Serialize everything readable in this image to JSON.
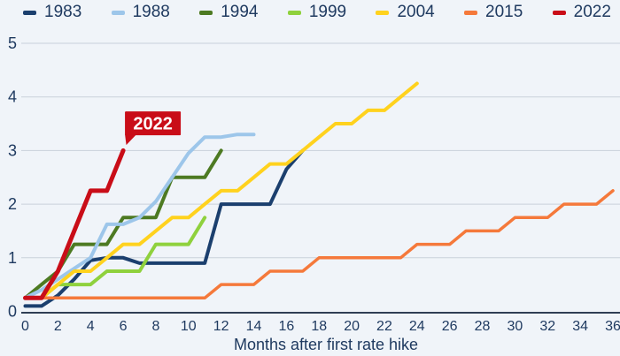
{
  "chart_data": {
    "type": "line",
    "title": "",
    "xlabel": "Months after first rate hike",
    "ylabel": "",
    "x_axis": {
      "min": 0,
      "max": 36,
      "ticks": [
        0,
        2,
        4,
        6,
        8,
        10,
        12,
        14,
        16,
        18,
        20,
        22,
        24,
        26,
        28,
        30,
        32,
        34,
        36
      ]
    },
    "y_axis": {
      "min": 0,
      "max": 5,
      "ticks": [
        0,
        1,
        2,
        3,
        4,
        5
      ]
    },
    "grid": "horizontal",
    "legend_position": "top",
    "colors": {
      "background": "#f0f4f9",
      "gridline": "#c9d1da",
      "axis_line": "#2f3e55",
      "text": "#1f3a60"
    },
    "series": [
      {
        "name": "1983",
        "color": "#1b3f6e",
        "width": 4,
        "values": [
          0.1,
          0.1,
          0.3,
          0.6,
          0.95,
          1.0,
          1.0,
          0.9,
          0.9,
          0.9,
          0.9,
          0.9,
          2.0,
          2.0,
          2.0,
          2.0,
          2.65,
          3.0
        ]
      },
      {
        "name": "1988",
        "color": "#9dc6ea",
        "width": 4,
        "values": [
          0.25,
          0.4,
          0.6,
          0.8,
          1.0,
          1.625,
          1.625,
          1.75,
          2.05,
          2.5,
          2.95,
          3.25,
          3.25,
          3.3,
          3.3
        ]
      },
      {
        "name": "1994",
        "color": "#4d7a22",
        "width": 4,
        "values": [
          0.25,
          0.5,
          0.75,
          1.25,
          1.25,
          1.25,
          1.75,
          1.75,
          1.75,
          2.5,
          2.5,
          2.5,
          3.0
        ]
      },
      {
        "name": "1999",
        "color": "#8fd13d",
        "width": 4,
        "values": [
          0.25,
          0.25,
          0.5,
          0.5,
          0.5,
          0.75,
          0.75,
          0.75,
          1.25,
          1.25,
          1.25,
          1.75
        ]
      },
      {
        "name": "2004",
        "color": "#ffd21e",
        "width": 4,
        "values": [
          0.25,
          0.25,
          0.5,
          0.75,
          0.75,
          1.0,
          1.25,
          1.25,
          1.5,
          1.75,
          1.75,
          2.0,
          2.25,
          2.25,
          2.5,
          2.75,
          2.75,
          3.0,
          3.25,
          3.5,
          3.5,
          3.75,
          3.75,
          4.0,
          4.25
        ]
      },
      {
        "name": "2015",
        "color": "#f5793b",
        "width": 3.5,
        "values": [
          0.25,
          0.25,
          0.25,
          0.25,
          0.25,
          0.25,
          0.25,
          0.25,
          0.25,
          0.25,
          0.25,
          0.25,
          0.5,
          0.5,
          0.5,
          0.75,
          0.75,
          0.75,
          1.0,
          1.0,
          1.0,
          1.0,
          1.0,
          1.0,
          1.25,
          1.25,
          1.25,
          1.5,
          1.5,
          1.5,
          1.75,
          1.75,
          1.75,
          2.0,
          2.0,
          2.0,
          2.25
        ]
      },
      {
        "name": "2022",
        "color": "#c90d18",
        "width": 5,
        "values": [
          0.25,
          0.25,
          0.75,
          1.5,
          2.25,
          2.25,
          3.0
        ]
      }
    ],
    "annotation": {
      "text": "2022",
      "month": 6,
      "value": 3.02
    }
  }
}
